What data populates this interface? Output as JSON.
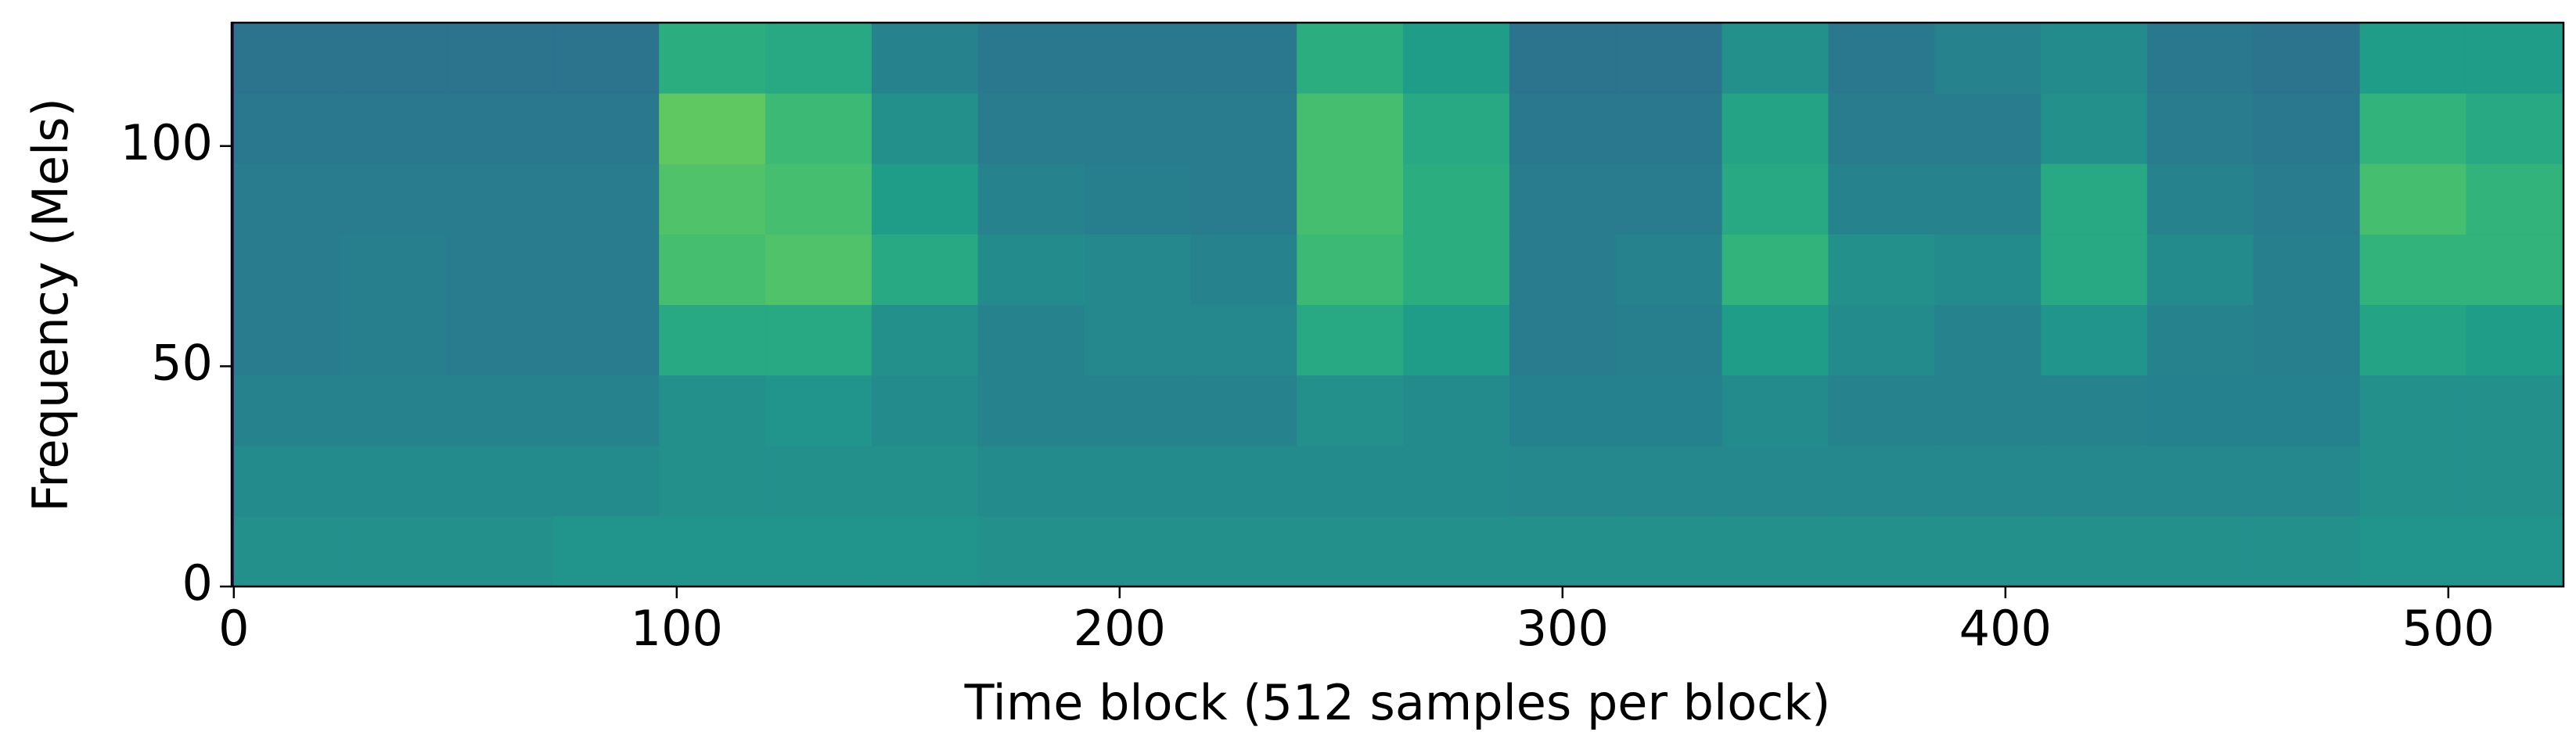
{
  "chart_data": {
    "type": "heatmap",
    "x_label": "Time block (512 samples per block)",
    "y_label": "Frequency (Mels)",
    "colormap": "viridis",
    "xlim": [
      -0.5,
      526
    ],
    "ylim": [
      0,
      128
    ],
    "xticks": [
      0,
      100,
      200,
      300,
      400,
      500
    ],
    "yticks": [
      0,
      50,
      100
    ],
    "x_edges": [
      0,
      24,
      48,
      72,
      96,
      120,
      144,
      168,
      192,
      216,
      240,
      264,
      288,
      312,
      336,
      360,
      384,
      408,
      432,
      456,
      480,
      504,
      528
    ],
    "y_edges": [
      0,
      16,
      32,
      48,
      64,
      80,
      96,
      112,
      128
    ],
    "zlim": [
      0,
      1
    ],
    "z": [
      [
        0.5,
        0.5,
        0.5,
        0.52,
        0.52,
        0.52,
        0.52,
        0.5,
        0.5,
        0.5,
        0.5,
        0.5,
        0.5,
        0.5,
        0.5,
        0.5,
        0.5,
        0.5,
        0.5,
        0.5,
        0.52,
        0.52
      ],
      [
        0.48,
        0.48,
        0.48,
        0.48,
        0.5,
        0.5,
        0.5,
        0.48,
        0.48,
        0.48,
        0.48,
        0.48,
        0.47,
        0.47,
        0.47,
        0.47,
        0.47,
        0.47,
        0.47,
        0.47,
        0.5,
        0.5
      ],
      [
        0.45,
        0.45,
        0.45,
        0.45,
        0.5,
        0.52,
        0.48,
        0.45,
        0.45,
        0.45,
        0.5,
        0.48,
        0.44,
        0.44,
        0.48,
        0.45,
        0.45,
        0.45,
        0.44,
        0.44,
        0.5,
        0.5
      ],
      [
        0.42,
        0.43,
        0.42,
        0.42,
        0.6,
        0.6,
        0.5,
        0.45,
        0.47,
        0.47,
        0.6,
        0.55,
        0.42,
        0.43,
        0.55,
        0.48,
        0.45,
        0.52,
        0.45,
        0.43,
        0.58,
        0.55
      ],
      [
        0.42,
        0.43,
        0.42,
        0.42,
        0.7,
        0.72,
        0.6,
        0.48,
        0.47,
        0.45,
        0.68,
        0.62,
        0.42,
        0.45,
        0.65,
        0.5,
        0.48,
        0.6,
        0.48,
        0.43,
        0.65,
        0.65
      ],
      [
        0.42,
        0.42,
        0.42,
        0.42,
        0.72,
        0.7,
        0.55,
        0.45,
        0.43,
        0.42,
        0.7,
        0.62,
        0.42,
        0.42,
        0.6,
        0.45,
        0.45,
        0.6,
        0.45,
        0.42,
        0.7,
        0.65
      ],
      [
        0.4,
        0.4,
        0.4,
        0.4,
        0.75,
        0.68,
        0.5,
        0.42,
        0.42,
        0.42,
        0.7,
        0.6,
        0.4,
        0.4,
        0.58,
        0.42,
        0.42,
        0.5,
        0.42,
        0.4,
        0.65,
        0.6
      ],
      [
        0.38,
        0.38,
        0.38,
        0.38,
        0.62,
        0.6,
        0.45,
        0.4,
        0.4,
        0.4,
        0.62,
        0.55,
        0.38,
        0.38,
        0.5,
        0.4,
        0.45,
        0.48,
        0.4,
        0.38,
        0.55,
        0.55
      ]
    ]
  }
}
